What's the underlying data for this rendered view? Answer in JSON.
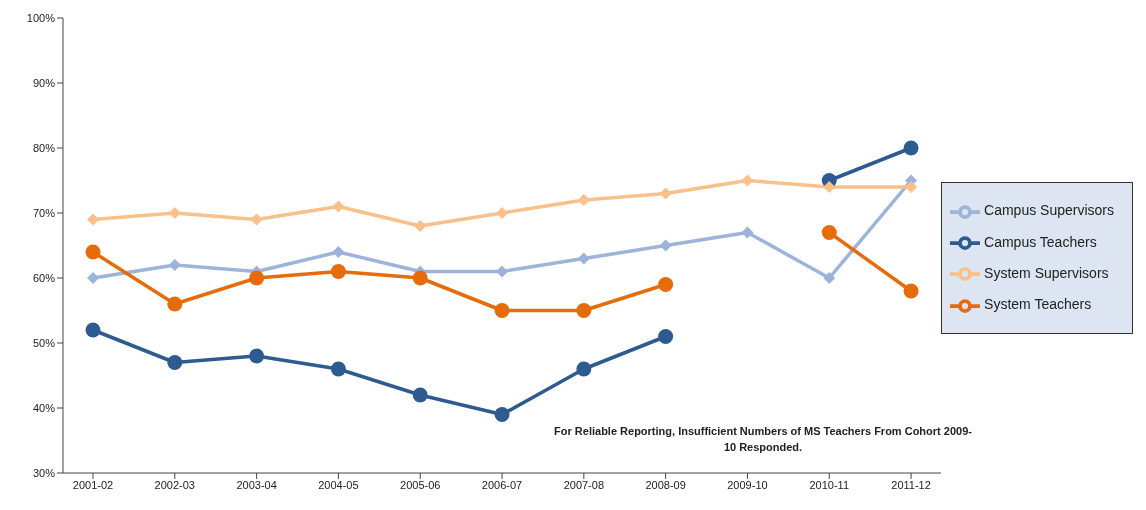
{
  "chart_data": {
    "type": "line",
    "categories": [
      "2001-02",
      "2002-03",
      "2003-04",
      "2004-05",
      "2005-06",
      "2006-07",
      "2007-08",
      "2008-09",
      "2009-10",
      "2010-11",
      "2011-12"
    ],
    "series": [
      {
        "name": "Campus Supervisors",
        "color": "#9db3d9",
        "marker": "diamond",
        "values": [
          60,
          62,
          61,
          64,
          61,
          61,
          63,
          65,
          67,
          60,
          75
        ]
      },
      {
        "name": "Campus Teachers",
        "color": "#2e5b8f",
        "marker": "circle",
        "values": [
          52,
          47,
          48,
          46,
          42,
          39,
          46,
          51,
          null,
          75,
          80
        ]
      },
      {
        "name": "System Supervisors",
        "color": "#f9c08a",
        "marker": "diamond",
        "values": [
          69,
          70,
          69,
          71,
          68,
          70,
          72,
          73,
          75,
          74,
          74
        ]
      },
      {
        "name": "System Teachers",
        "color": "#e46c0a",
        "marker": "circle",
        "values": [
          64,
          56,
          60,
          61,
          60,
          55,
          55,
          59,
          null,
          67,
          58
        ]
      }
    ],
    "ylim": [
      30,
      100
    ],
    "yticks": [
      {
        "value": 30,
        "label": "30%"
      },
      {
        "value": 40,
        "label": "40%"
      },
      {
        "value": 50,
        "label": "50%"
      },
      {
        "value": 60,
        "label": "60%"
      },
      {
        "value": 70,
        "label": "70%"
      },
      {
        "value": 80,
        "label": "80%"
      },
      {
        "value": 90,
        "label": "90%"
      },
      {
        "value": 100,
        "label": "100%"
      }
    ],
    "legend": "right",
    "grid": false,
    "annotations": [
      "For Reliable Reporting, Insufficient Numbers of MS Teachers From Cohort 2009-10 Responded."
    ]
  }
}
